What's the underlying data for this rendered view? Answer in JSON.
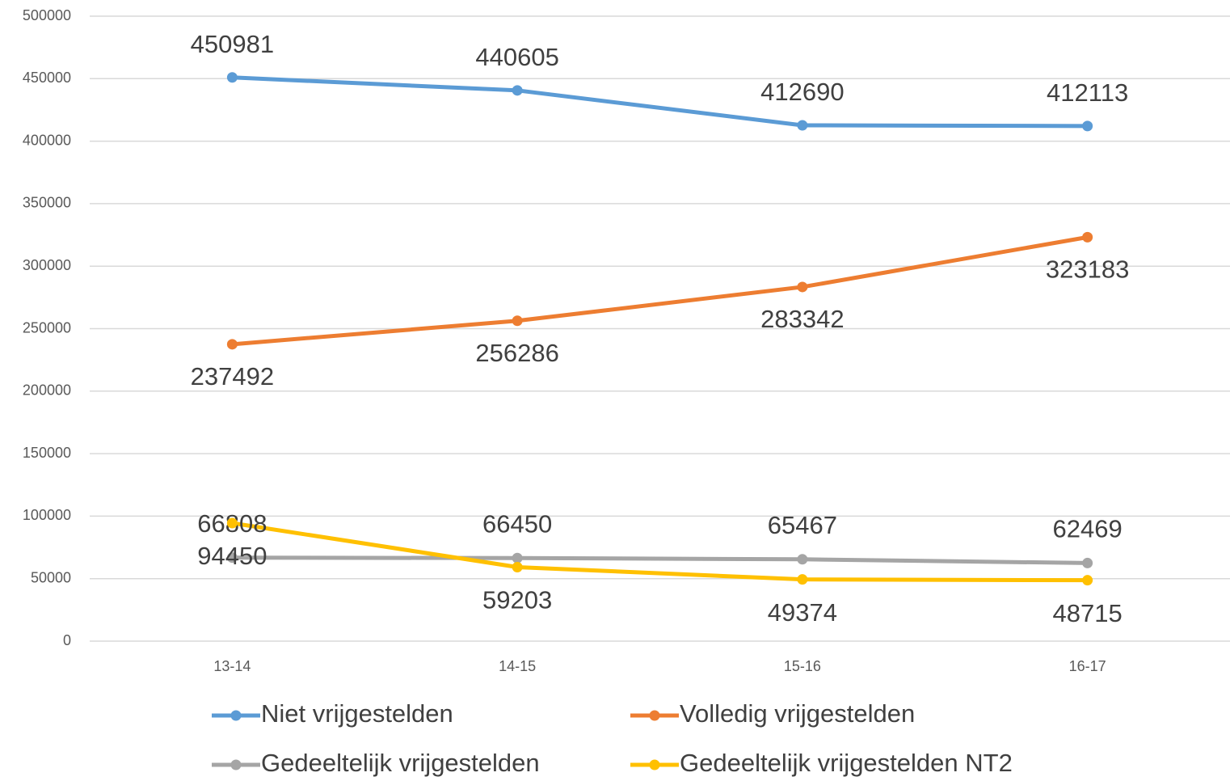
{
  "chart_data": {
    "type": "line",
    "categories": [
      "13-14",
      "14-15",
      "15-16",
      "16-17"
    ],
    "series": [
      {
        "name": "Niet vrijgestelden",
        "color": "#5b9bd5",
        "values": [
          450981,
          440605,
          412690,
          412113
        ]
      },
      {
        "name": "Volledig vrijgestelden",
        "color": "#ed7d31",
        "values": [
          237492,
          256286,
          283342,
          323183
        ]
      },
      {
        "name": "Gedeeltelijk vrijgestelden",
        "color": "#a5a5a5",
        "values": [
          66808,
          66450,
          65467,
          62469
        ]
      },
      {
        "name": "Gedeeltelijk vrijgestelden NT2",
        "color": "#ffc000",
        "values": [
          94450,
          59203,
          49374,
          48715
        ]
      }
    ],
    "ylim": [
      0,
      500000
    ],
    "yticks": [
      0,
      50000,
      100000,
      150000,
      200000,
      250000,
      300000,
      350000,
      400000,
      450000,
      500000
    ],
    "grid": true,
    "legend": "bottom"
  }
}
